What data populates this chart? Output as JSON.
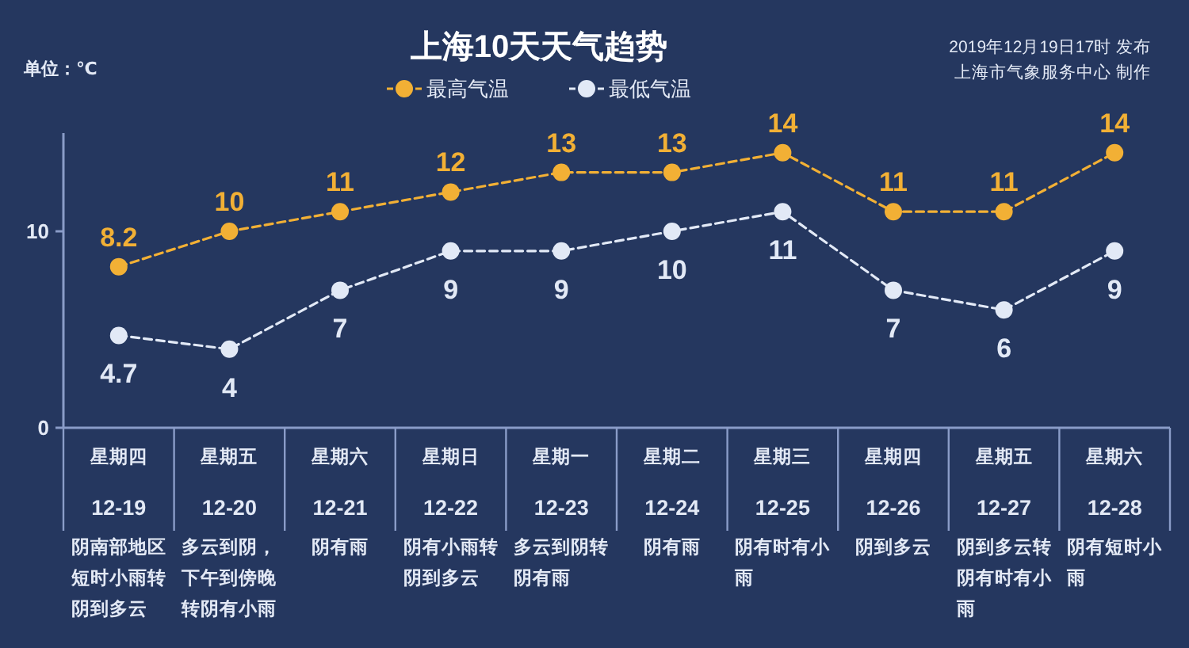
{
  "chart_data": {
    "type": "line",
    "title": "上海10天天气趋势",
    "ylabel": "单位：℃",
    "categories": [
      "星期四\n12-19",
      "星期五\n12-20",
      "星期六\n12-21",
      "星期日\n12-22",
      "星期一\n12-23",
      "星期二\n12-24",
      "星期三\n12-25",
      "星期四\n12-26",
      "星期五\n12-27",
      "星期六\n12-28"
    ],
    "series": [
      {
        "name": "最高气温",
        "color": "#f2b035",
        "values": [
          8.2,
          10,
          11,
          12,
          13,
          13,
          14,
          11,
          11,
          14
        ]
      },
      {
        "name": "最低气温",
        "color": "#e2e9f6",
        "values": [
          4.7,
          4,
          7,
          9,
          9,
          10,
          11,
          7,
          6,
          9
        ]
      }
    ],
    "ylim": [
      0,
      15
    ],
    "yticks": [
      0,
      10
    ],
    "data_labels": true,
    "legend": "top",
    "marker": "circle",
    "line_style": "dashed",
    "annotations": [
      "阴南部地区短时小雨转阴到多云",
      "多云到阴，下午到傍晚转阴有小雨",
      "阴有雨",
      "阴有小雨转阴到多云",
      "多云到阴转阴有雨",
      "阴有雨",
      "阴有时有小雨",
      "阴到多云",
      "阴到多云转阴有时有小雨",
      "阴有短时小雨",
      "2019年12月19日17时 发布",
      "上海市气象服务中心 制作"
    ]
  }
}
